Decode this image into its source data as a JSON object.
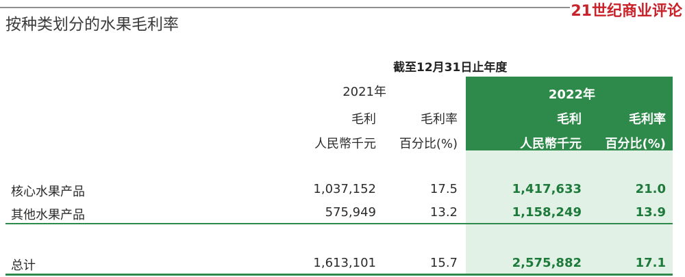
{
  "watermark": "21世纪商业评论",
  "title": "按种类划分的水果毛利率",
  "period": "截至12月31日止年度",
  "columns": {
    "y2021": {
      "year": "2021年",
      "gp_label": "毛利",
      "gp_unit": "人民幣千元",
      "rate_label": "毛利率",
      "rate_unit": "百分比(%)"
    },
    "y2022": {
      "year": "2022年",
      "gp_label": "毛利",
      "gp_unit": "人民幣千元",
      "rate_label": "毛利率",
      "rate_unit": "百分比(%)"
    }
  },
  "rows": [
    {
      "label": "核心水果产品",
      "gp2021": "1,037,152",
      "rate2021": "17.5",
      "gp2022": "1,417,633",
      "rate2022": "21.0"
    },
    {
      "label": "其他水果产品",
      "gp2021": "575,949",
      "rate2021": "13.2",
      "gp2022": "1,158,249",
      "rate2022": "13.9"
    }
  ],
  "total": {
    "label": "总计",
    "gp2021": "1,613,101",
    "rate2021": "15.7",
    "gp2022": "2,575,882",
    "rate2022": "17.1"
  },
  "colors": {
    "green": "#2e8a4a",
    "light_green": "#e2f1e6",
    "watermark_red": "#c8222b"
  }
}
